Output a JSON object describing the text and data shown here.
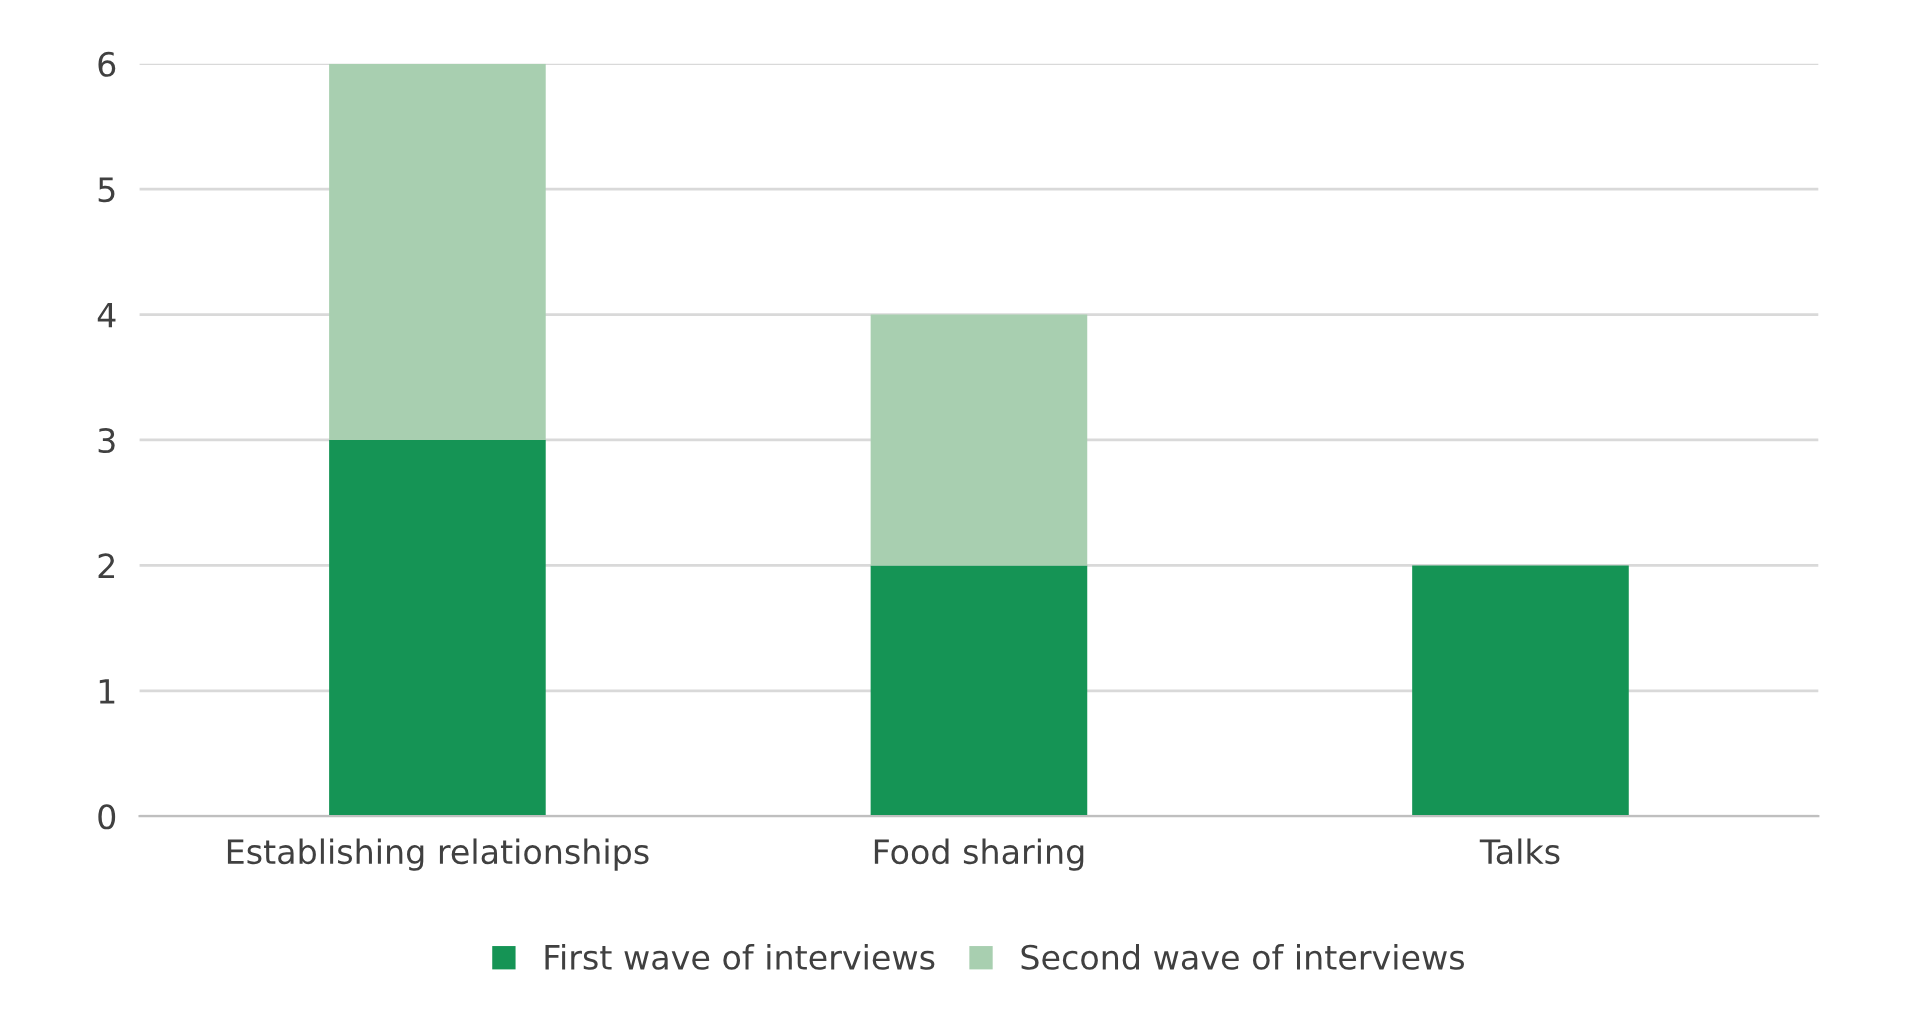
{
  "chart_data": {
    "type": "bar",
    "stacked": true,
    "categories": [
      "Establishing relationships",
      "Food sharing",
      "Talks"
    ],
    "series": [
      {
        "name": "First wave of interviews",
        "color": "#159455",
        "values": [
          3,
          2,
          2
        ]
      },
      {
        "name": "Second wave of interviews",
        "color": "#a8cfb0",
        "values": [
          3,
          2,
          null
        ]
      }
    ],
    "ylim": [
      0,
      6
    ],
    "yticks": [
      0,
      1,
      2,
      3,
      4,
      5,
      6
    ],
    "grid": "y",
    "legend": "bottom"
  }
}
